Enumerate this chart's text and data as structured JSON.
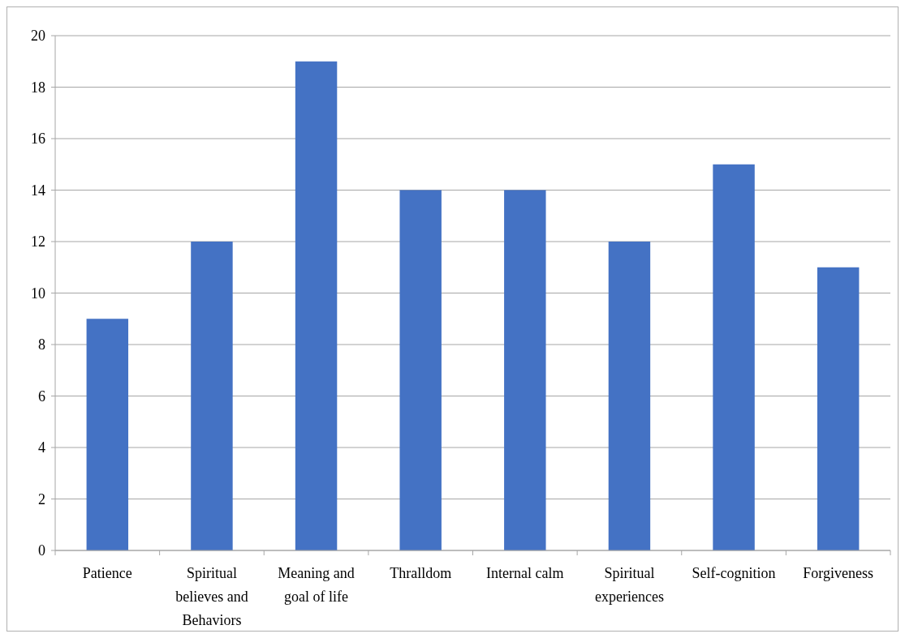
{
  "chart_data": {
    "type": "bar",
    "categories": [
      "Patience",
      "Spiritual believes and Behaviors",
      "Meaning and goal of life",
      "Thralldom",
      "Internal calm",
      "Spiritual experiences",
      "Self-cognition",
      "Forgiveness"
    ],
    "values": [
      9,
      12,
      19,
      14,
      14,
      12,
      15,
      11
    ],
    "color": "#4472c4",
    "ylim": [
      0,
      20
    ],
    "yticks": [
      0,
      2,
      4,
      6,
      8,
      10,
      12,
      14,
      16,
      18,
      20
    ],
    "grid": "y"
  }
}
